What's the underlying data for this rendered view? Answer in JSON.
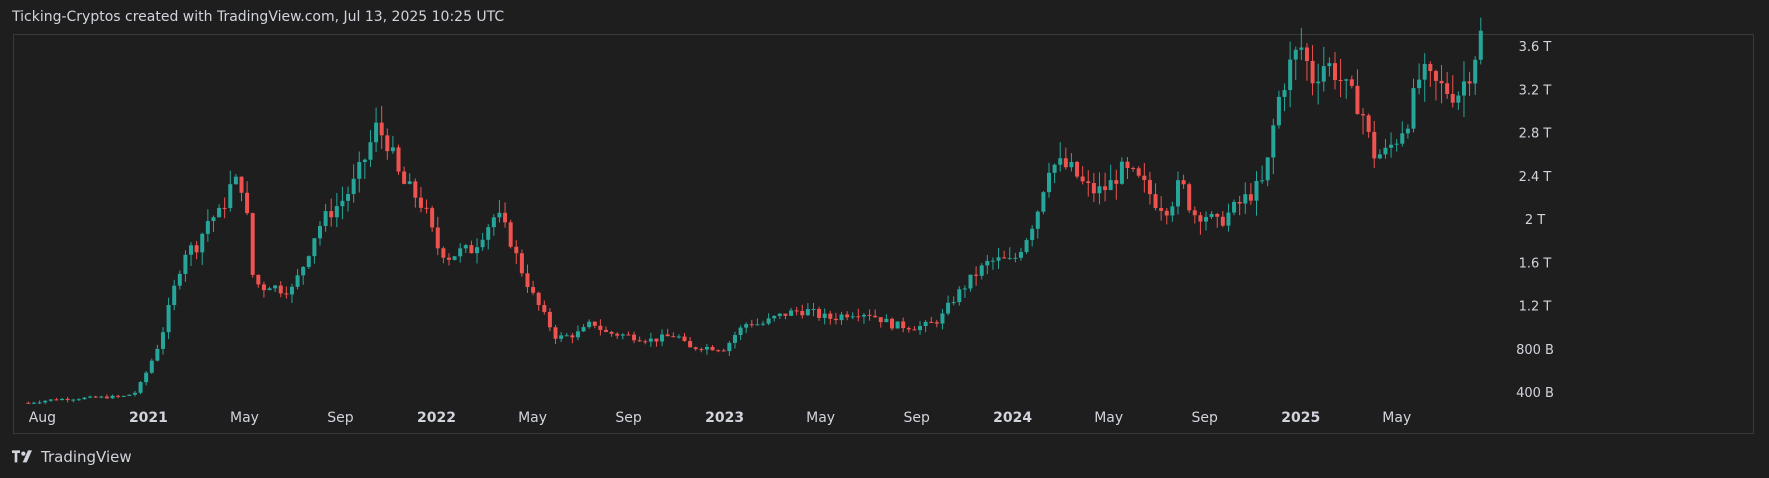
{
  "header": {
    "title": "Ticking-Cryptos created with TradingView.com, Jul 13, 2025 10:25 UTC"
  },
  "footer": {
    "brand": "TradingView"
  },
  "colors": {
    "up": "#26a69a",
    "down": "#ef5350",
    "background": "#1e1e1e",
    "text": "#d1d4dc",
    "grid": "#3a3a3a"
  },
  "chart_data": {
    "type": "candlestick",
    "title": "",
    "xlabel": "",
    "ylabel": "",
    "ylim": [
      0,
      3.8
    ],
    "y_unit": "T",
    "y_ticks": [
      {
        "value": 0.4,
        "label": "400 B"
      },
      {
        "value": 0.8,
        "label": "800 B"
      },
      {
        "value": 1.2,
        "label": "1.2 T"
      },
      {
        "value": 1.6,
        "label": "1.6 T"
      },
      {
        "value": 2.0,
        "label": "2 T"
      },
      {
        "value": 2.4,
        "label": "2.4 T"
      },
      {
        "value": 2.8,
        "label": "2.8 T"
      },
      {
        "value": 3.2,
        "label": "3.2 T"
      },
      {
        "value": 3.6,
        "label": "3.6 T"
      }
    ],
    "x_ticks": [
      {
        "label": "Aug",
        "month": 0,
        "bold": false
      },
      {
        "label": "2021",
        "month": 5,
        "bold": true
      },
      {
        "label": "May",
        "month": 9,
        "bold": false
      },
      {
        "label": "Sep",
        "month": 13,
        "bold": false
      },
      {
        "label": "2022",
        "month": 17,
        "bold": true
      },
      {
        "label": "May",
        "month": 21,
        "bold": false
      },
      {
        "label": "Sep",
        "month": 25,
        "bold": false
      },
      {
        "label": "2023",
        "month": 29,
        "bold": true
      },
      {
        "label": "May",
        "month": 33,
        "bold": false
      },
      {
        "label": "Sep",
        "month": 37,
        "bold": false
      },
      {
        "label": "2024",
        "month": 41,
        "bold": true
      },
      {
        "label": "May",
        "month": 45,
        "bold": false
      },
      {
        "label": "Sep",
        "month": 49,
        "bold": false
      },
      {
        "label": "2025",
        "month": 53,
        "bold": true
      },
      {
        "label": "May",
        "month": 57,
        "bold": false
      }
    ],
    "close_path": [
      [
        0,
        0.3
      ],
      [
        1,
        0.33
      ],
      [
        2,
        0.34
      ],
      [
        3,
        0.35
      ],
      [
        4,
        0.36
      ],
      [
        4.5,
        0.4
      ],
      [
        5,
        0.62
      ],
      [
        5.5,
        0.88
      ],
      [
        6,
        1.3
      ],
      [
        6.5,
        1.7
      ],
      [
        7,
        1.75
      ],
      [
        7.5,
        2.0
      ],
      [
        8,
        2.05
      ],
      [
        8.5,
        2.35
      ],
      [
        9,
        2.3
      ],
      [
        9.3,
        1.5
      ],
      [
        9.7,
        1.35
      ],
      [
        10,
        1.4
      ],
      [
        10.5,
        1.35
      ],
      [
        11,
        1.35
      ],
      [
        11.5,
        1.6
      ],
      [
        12,
        1.9
      ],
      [
        12.5,
        2.05
      ],
      [
        13,
        2.15
      ],
      [
        13.5,
        2.3
      ],
      [
        14,
        2.55
      ],
      [
        14.5,
        2.85
      ],
      [
        15,
        2.7
      ],
      [
        15.5,
        2.35
      ],
      [
        16,
        2.25
      ],
      [
        16.5,
        2.1
      ],
      [
        17,
        1.75
      ],
      [
        17.5,
        1.65
      ],
      [
        18,
        1.7
      ],
      [
        18.5,
        1.72
      ],
      [
        19,
        1.9
      ],
      [
        19.5,
        2.05
      ],
      [
        20,
        1.85
      ],
      [
        20.5,
        1.55
      ],
      [
        21,
        1.3
      ],
      [
        21.5,
        1.1
      ],
      [
        22,
        0.9
      ],
      [
        22.5,
        0.92
      ],
      [
        23,
        0.95
      ],
      [
        23.5,
        1.05
      ],
      [
        24,
        0.95
      ],
      [
        25,
        0.92
      ],
      [
        26,
        0.88
      ],
      [
        27,
        0.93
      ],
      [
        27.5,
        0.8
      ],
      [
        28,
        0.82
      ],
      [
        29,
        0.8
      ],
      [
        29.5,
        0.95
      ],
      [
        30,
        1.05
      ],
      [
        30.5,
        1.02
      ],
      [
        31,
        1.08
      ],
      [
        31.5,
        1.12
      ],
      [
        32,
        1.15
      ],
      [
        32.5,
        1.15
      ],
      [
        33,
        1.1
      ],
      [
        33.5,
        1.08
      ],
      [
        34,
        1.12
      ],
      [
        34.5,
        1.14
      ],
      [
        35,
        1.13
      ],
      [
        36,
        1.02
      ],
      [
        37,
        1.0
      ],
      [
        37.5,
        1.02
      ],
      [
        38,
        1.08
      ],
      [
        38.5,
        1.25
      ],
      [
        39,
        1.38
      ],
      [
        39.5,
        1.5
      ],
      [
        40,
        1.6
      ],
      [
        40.5,
        1.62
      ],
      [
        41,
        1.6
      ],
      [
        41.5,
        1.8
      ],
      [
        42,
        2.05
      ],
      [
        42.5,
        2.5
      ],
      [
        43,
        2.5
      ],
      [
        43.5,
        2.45
      ],
      [
        44,
        2.3
      ],
      [
        44.5,
        2.25
      ],
      [
        45,
        2.3
      ],
      [
        45.5,
        2.45
      ],
      [
        46,
        2.4
      ],
      [
        46.5,
        2.3
      ],
      [
        47,
        2.15
      ],
      [
        47.5,
        2.1
      ],
      [
        48,
        2.35
      ],
      [
        48.5,
        2.05
      ],
      [
        49,
        2.05
      ],
      [
        49.5,
        1.95
      ],
      [
        50,
        2.05
      ],
      [
        50.5,
        2.15
      ],
      [
        51,
        2.25
      ],
      [
        51.5,
        2.35
      ],
      [
        52,
        3.05
      ],
      [
        52.5,
        3.4
      ],
      [
        53,
        3.6
      ],
      [
        53.5,
        3.3
      ],
      [
        54,
        3.45
      ],
      [
        54.5,
        3.35
      ],
      [
        55,
        3.15
      ],
      [
        55.5,
        3.05
      ],
      [
        56,
        2.6
      ],
      [
        56.5,
        2.6
      ],
      [
        57,
        2.75
      ],
      [
        57.5,
        2.95
      ],
      [
        58,
        3.35
      ],
      [
        58.5,
        3.25
      ],
      [
        59,
        3.2
      ],
      [
        59.5,
        3.15
      ],
      [
        60,
        3.35
      ],
      [
        60.5,
        3.7
      ]
    ],
    "candles_total": 260,
    "months_shown": [
      -0.6,
      61.3
    ]
  }
}
